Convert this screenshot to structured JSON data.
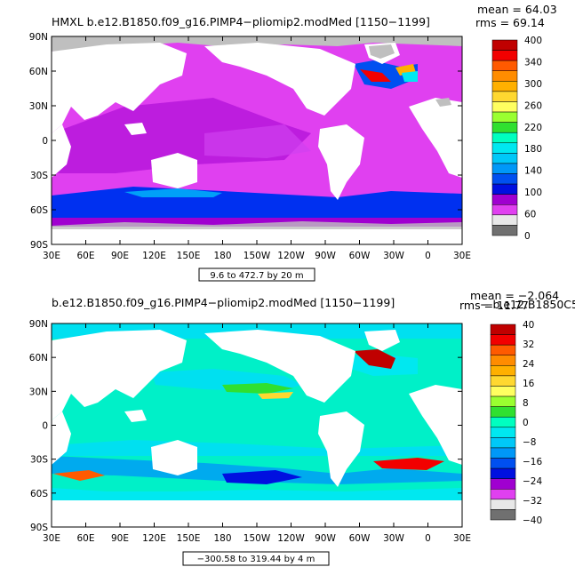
{
  "panels": [
    {
      "title": "HMXL  b.e12.B1850.f09_g16.PIMP4−pliomip2.modMed  [1150−1199]",
      "stat_line1": "mean = 64.03",
      "stat_line2": "rms = 69.14",
      "overlay_text": "",
      "lat_ticks": [
        "90N",
        "60N",
        "30N",
        "0",
        "30S",
        "60S",
        "90S"
      ],
      "lon_ticks": [
        "30E",
        "60E",
        "90E",
        "120E",
        "150E",
        "180",
        "150W",
        "120W",
        "90W",
        "60W",
        "30W",
        "0",
        "30E"
      ],
      "range_note": "9.6 to 472.7 by 20 m",
      "colorbar": {
        "labels": [
          "400",
          "340",
          "300",
          "260",
          "220",
          "180",
          "140",
          "100",
          "60",
          "0"
        ],
        "colors": [
          "#c00000",
          "#f20000",
          "#ff5a00",
          "#ff8c00",
          "#ffb000",
          "#ffd830",
          "#ffff60",
          "#9aff30",
          "#30e030",
          "#00ffc0",
          "#00e8f0",
          "#00c8f8",
          "#0098f8",
          "#0050f0",
          "#0010e0",
          "#a000d0",
          "#e040f0",
          "#e8e8e8",
          "#707070"
        ]
      }
    },
    {
      "title": "b.e12.B1850.f09_g16.PIMP4−pliomip2.modMed  [1150−1199]",
      "stat_line1": "mean = −2.064",
      "stat_line2": "rms = 11.77",
      "overlay_text": "− b.e12.B1850C5CN",
      "lat_ticks": [
        "90N",
        "60N",
        "30N",
        "0",
        "30S",
        "60S",
        "90S"
      ],
      "lon_ticks": [
        "30E",
        "60E",
        "90E",
        "120E",
        "150E",
        "180",
        "150W",
        "120W",
        "90W",
        "60W",
        "30W",
        "0",
        "30E"
      ],
      "range_note": "−300.58 to 319.44 by 4 m",
      "colorbar": {
        "labels": [
          "40",
          "32",
          "24",
          "16",
          "8",
          "0",
          "−8",
          "−16",
          "−24",
          "−32",
          "−40"
        ],
        "colors": [
          "#c00000",
          "#f20000",
          "#ff5a00",
          "#ff8c00",
          "#ffb000",
          "#ffd830",
          "#ffff60",
          "#9aff30",
          "#30e030",
          "#00ffc0",
          "#00e8f0",
          "#00c8f8",
          "#0098f8",
          "#0050f0",
          "#0010e0",
          "#a000d0",
          "#e040f0",
          "#e8e8e8",
          "#707070"
        ]
      }
    }
  ],
  "field_colors": {
    "land": "#ffffff",
    "ice": "#bfbfbf",
    "p0_background": "#e040f0",
    "p0_southern": "#0030f0",
    "p0_southern_light": "#00a0f8",
    "p0_tropical": "#a000d0",
    "p0_high": "#f20000",
    "p1_background": "#00f0c8",
    "p1_light": "#00e0f0",
    "p1_green": "#30e030",
    "p1_deep_pos": "#c00000",
    "p1_neg": "#0010e0"
  }
}
